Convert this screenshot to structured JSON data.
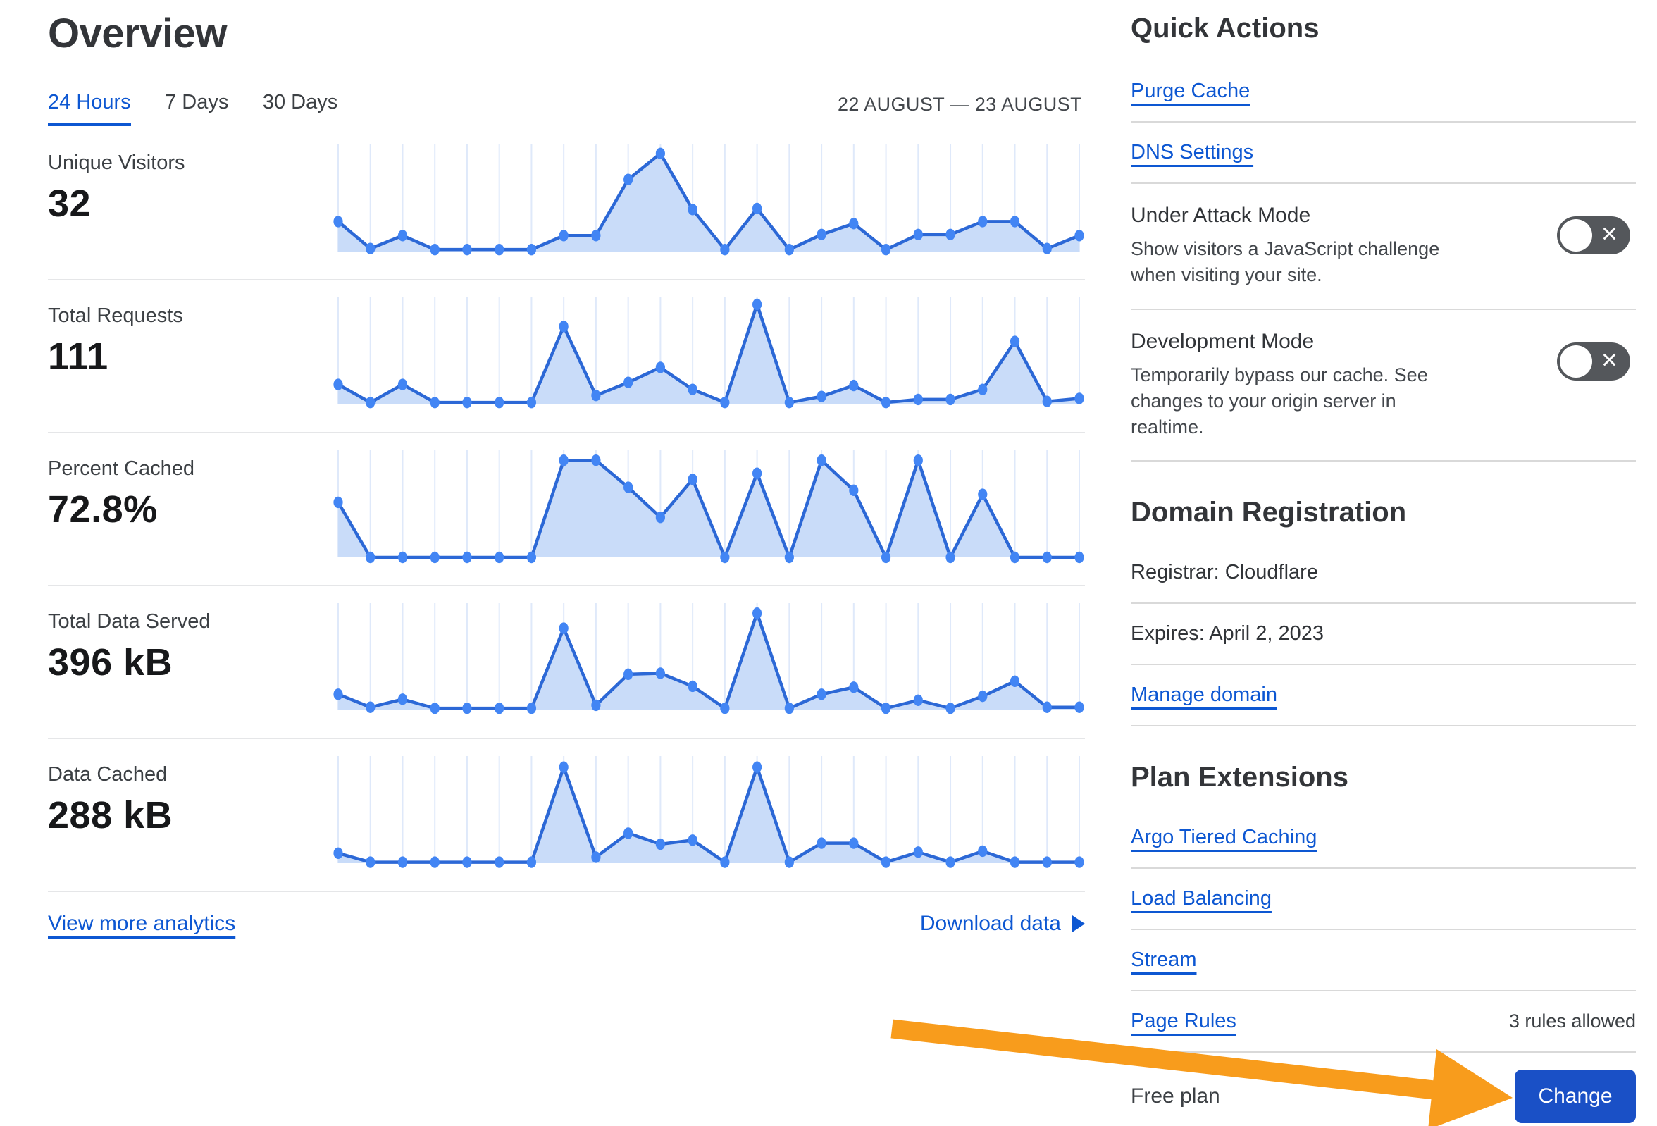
{
  "page": {
    "title": "Overview"
  },
  "tabs": {
    "items": [
      {
        "label": "24 Hours",
        "active": true
      },
      {
        "label": "7 Days",
        "active": false
      },
      {
        "label": "30 Days",
        "active": false
      }
    ],
    "date_range": "22 AUGUST — 23 AUGUST"
  },
  "metrics": [
    {
      "label": "Unique Visitors",
      "value": "32"
    },
    {
      "label": "Total Requests",
      "value": "111"
    },
    {
      "label": "Percent Cached",
      "value": "72.8%"
    },
    {
      "label": "Total Data Served",
      "value": "396 kB"
    },
    {
      "label": "Data Cached",
      "value": "288 kB"
    }
  ],
  "chart_data": [
    {
      "type": "area",
      "title": "Unique Visitors",
      "summary_value": "32",
      "x_range": "24 Hours (22 August — 23 August), 24 unlabeled points",
      "ylim": [
        0,
        1
      ],
      "grid": "vertical only",
      "legend": "none",
      "points": [
        0.3,
        0.03,
        0.16,
        0.02,
        0.02,
        0.02,
        0.02,
        0.16,
        0.16,
        0.72,
        0.98,
        0.42,
        0.02,
        0.43,
        0.02,
        0.17,
        0.28,
        0.02,
        0.17,
        0.17,
        0.3,
        0.3,
        0.03,
        0.16
      ]
    },
    {
      "type": "area",
      "title": "Total Requests",
      "summary_value": "111",
      "x_range": "24 Hours (22 August — 23 August), 24 unlabeled points",
      "ylim": [
        0,
        1
      ],
      "grid": "vertical only",
      "legend": "none",
      "points": [
        0.2,
        0.02,
        0.2,
        0.02,
        0.02,
        0.02,
        0.02,
        0.78,
        0.09,
        0.22,
        0.37,
        0.15,
        0.02,
        1.0,
        0.02,
        0.08,
        0.19,
        0.02,
        0.05,
        0.05,
        0.15,
        0.63,
        0.03,
        0.06
      ]
    },
    {
      "type": "area",
      "title": "Percent Cached",
      "summary_value": "72.8%",
      "x_range": "24 Hours (22 August — 23 August), 24 unlabeled points",
      "ylim": [
        0,
        1
      ],
      "grid": "vertical only",
      "legend": "none",
      "points": [
        0.55,
        0.0,
        0.0,
        0.0,
        0.0,
        0.0,
        0.0,
        0.97,
        0.97,
        0.7,
        0.4,
        0.78,
        0.0,
        0.84,
        0.0,
        0.97,
        0.67,
        0.0,
        0.97,
        0.0,
        0.63,
        0.0,
        0.0,
        0.0
      ]
    },
    {
      "type": "area",
      "title": "Total Data Served",
      "summary_value": "396 kB",
      "x_range": "24 Hours (22 August — 23 August), 24 unlabeled points",
      "ylim": [
        0,
        1
      ],
      "grid": "vertical only",
      "legend": "none",
      "points": [
        0.16,
        0.03,
        0.11,
        0.02,
        0.02,
        0.02,
        0.02,
        0.82,
        0.05,
        0.36,
        0.37,
        0.24,
        0.02,
        0.97,
        0.02,
        0.16,
        0.23,
        0.02,
        0.1,
        0.02,
        0.14,
        0.29,
        0.03,
        0.03
      ]
    },
    {
      "type": "area",
      "title": "Data Cached",
      "summary_value": "288 kB",
      "x_range": "24 Hours (22 August — 23 August), 24 unlabeled points",
      "ylim": [
        0,
        1
      ],
      "grid": "vertical only",
      "legend": "none",
      "points": [
        0.1,
        0.01,
        0.01,
        0.01,
        0.01,
        0.01,
        0.01,
        0.96,
        0.06,
        0.3,
        0.19,
        0.23,
        0.01,
        0.96,
        0.01,
        0.2,
        0.2,
        0.01,
        0.11,
        0.01,
        0.12,
        0.01,
        0.01,
        0.01
      ]
    }
  ],
  "footer_links": {
    "view_more": "View more analytics",
    "download": "Download data"
  },
  "quick_actions": {
    "heading": "Quick Actions",
    "links": [
      {
        "label": "Purge Cache"
      },
      {
        "label": "DNS Settings"
      }
    ],
    "toggles": [
      {
        "title": "Under Attack Mode",
        "description": "Show visitors a JavaScript challenge when visiting your site.",
        "state": "off"
      },
      {
        "title": "Development Mode",
        "description": "Temporarily bypass our cache. See changes to your origin server in realtime.",
        "state": "off"
      }
    ]
  },
  "domain_registration": {
    "heading": "Domain Registration",
    "registrar": "Registrar: Cloudflare",
    "expires": "Expires: April 2, 2023",
    "manage_label": "Manage domain"
  },
  "plan_extensions": {
    "heading": "Plan Extensions",
    "links": [
      {
        "label": "Argo Tiered Caching",
        "note": ""
      },
      {
        "label": "Load Balancing",
        "note": ""
      },
      {
        "label": "Stream",
        "note": ""
      },
      {
        "label": "Page Rules",
        "note": "3 rules allowed"
      }
    ]
  },
  "plan": {
    "name": "Free plan",
    "change_label": "Change"
  },
  "colors": {
    "link_blue": "#0d57d2",
    "chart_line": "#2c68d6",
    "chart_dot": "#4285f4",
    "chart_fill": "#c9dcf9",
    "chart_grid": "#dfe9fa",
    "button_blue": "#1a50c6",
    "toggle_gray": "#54575b",
    "arrow_orange": "#f89c1c",
    "divider_gray": "#d9d9d9"
  }
}
